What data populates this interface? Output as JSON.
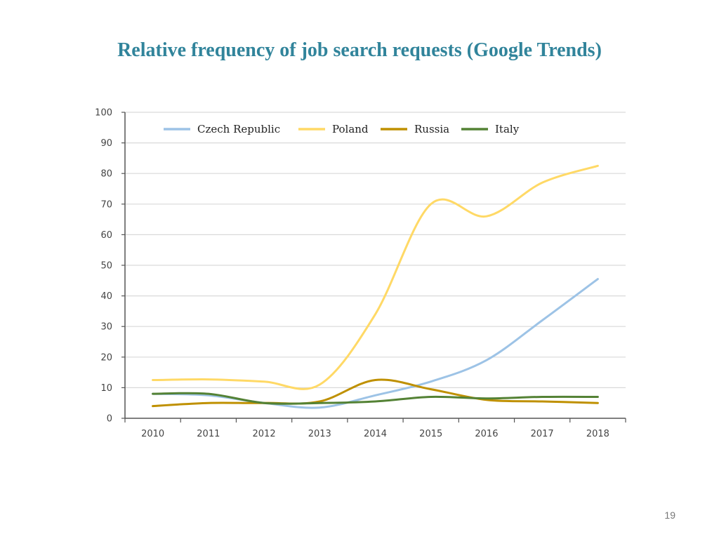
{
  "slide": {
    "title": "Relative frequency of job search requests (Google Trends)",
    "page_number": "19"
  },
  "colors": {
    "title": "#31849b",
    "grid": "#d9d9d9",
    "axis": "#555555",
    "Czech Republic": "#9dc3e6",
    "Poland": "#ffd966",
    "Russia": "#bf9000",
    "Italy": "#548235"
  },
  "chart_data": {
    "type": "line",
    "title": "",
    "xlabel": "",
    "ylabel": "",
    "ylim": [
      0,
      100
    ],
    "yticks": [
      0,
      10,
      20,
      30,
      40,
      50,
      60,
      70,
      80,
      90,
      100
    ],
    "categories": [
      "2010",
      "2011",
      "2012",
      "2013",
      "2014",
      "2015",
      "2016",
      "2017",
      "2018"
    ],
    "legend_position": "top",
    "grid": true,
    "series": [
      {
        "name": "Czech Republic",
        "values": [
          8,
          7.5,
          5,
          3.5,
          7.5,
          12,
          19,
          32,
          45.5
        ]
      },
      {
        "name": "Poland",
        "values": [
          12.5,
          12.7,
          12,
          11,
          34,
          70,
          66,
          77,
          82.5
        ]
      },
      {
        "name": "Russia",
        "values": [
          4,
          5,
          5,
          5.5,
          12.5,
          9.5,
          6,
          5.5,
          5
        ]
      },
      {
        "name": "Italy",
        "values": [
          8,
          8,
          5,
          5,
          5.5,
          7,
          6.5,
          7,
          7
        ]
      }
    ]
  }
}
